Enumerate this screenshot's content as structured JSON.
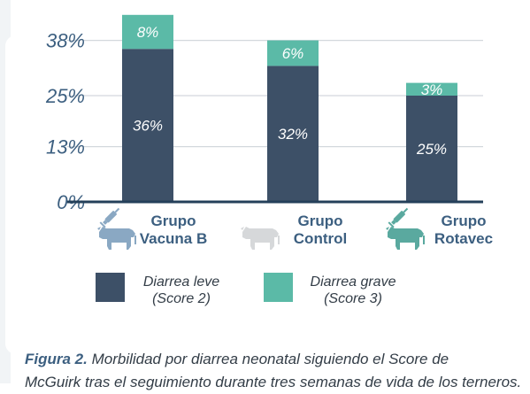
{
  "chart_data": {
    "type": "bar",
    "stacked": true,
    "categories": [
      {
        "line1": "Grupo",
        "line2": "Vacuna B",
        "icon": "vaccinated-cow-icon",
        "icon_color": "#8aa8c3",
        "syringe": true
      },
      {
        "line1": "Grupo",
        "line2": "Control",
        "icon": "cow-icon",
        "icon_color": "#d6d8da",
        "syringe": false
      },
      {
        "line1": "Grupo",
        "line2": "Rotavec",
        "icon": "vaccinated-cow-icon",
        "icon_color": "#5aa99f",
        "syringe": true
      }
    ],
    "series": [
      {
        "name_line1": "Diarrea leve",
        "name_line2": "(Score 2)",
        "color": "#3d5067",
        "values": [
          36,
          32,
          25
        ],
        "labels": [
          "36%",
          "32%",
          "25%"
        ]
      },
      {
        "name_line1": "Diarrea grave",
        "name_line2": "(Score 3)",
        "color": "#5bbaa7",
        "values": [
          8,
          6,
          3
        ],
        "labels": [
          "8%",
          "6%",
          "3%"
        ]
      }
    ],
    "y_ticks": [
      0,
      13,
      25,
      38
    ],
    "y_tick_labels": [
      "0%",
      "13%",
      "25%",
      "38%"
    ],
    "ylim": [
      0,
      50
    ],
    "grid": true,
    "legend_position": "bottom"
  },
  "caption": {
    "label": "Figura 2.",
    "text": " Morbilidad por diarrea neonatal siguiendo el Score de",
    "line2": "McGuirk tras el seguimiento durante tres semanas de vida de los terneros."
  }
}
